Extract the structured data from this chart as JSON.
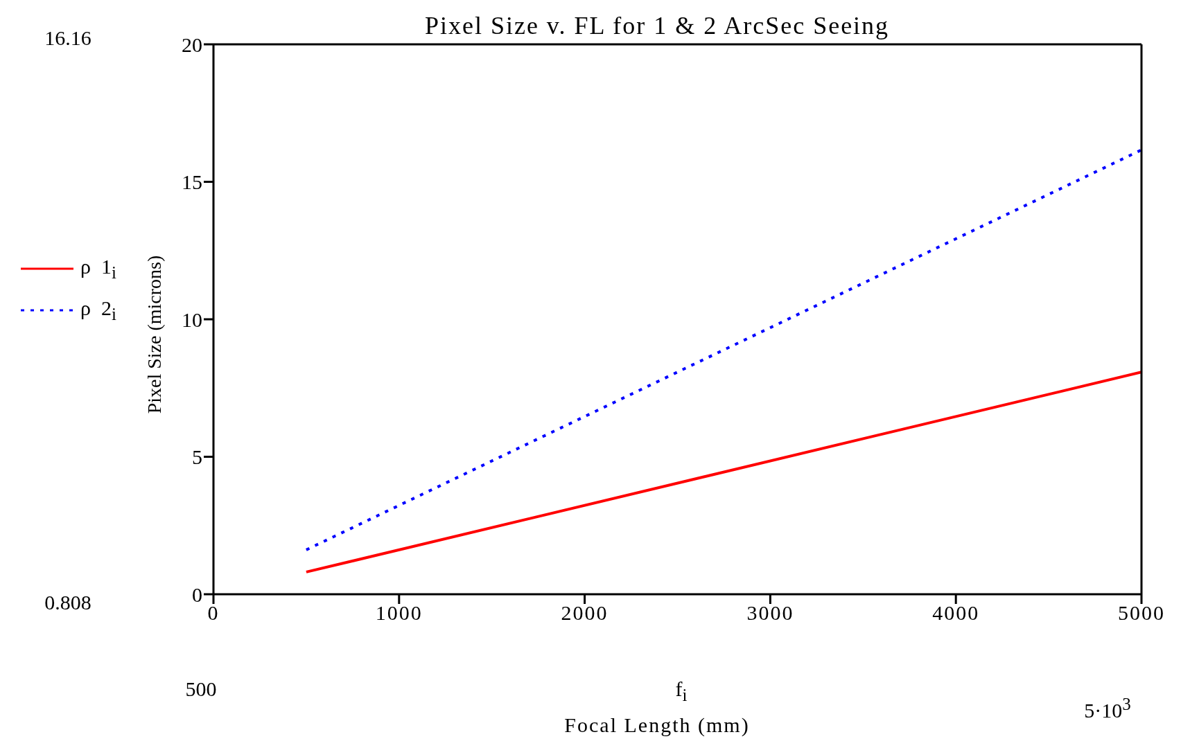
{
  "chart_data": {
    "type": "line",
    "title": "Pixel Size v. FL for 1 & 2 ArcSec Seeing",
    "xlabel": "Focal Length (mm)",
    "ylabel": "Pixel Size (microns)",
    "annotations": [
      "16.16",
      "0.808",
      "500",
      "5·10$^{3}$",
      "f$_{i}$"
    ],
    "x": [
      500,
      5000
    ],
    "series": [
      {
        "name": "ρ  1$_{i}$",
        "color": "#ff0000",
        "values": [
          0.808,
          8.08
        ],
        "line_style": "solid"
      },
      {
        "name": "ρ  2$_{i}$",
        "color": "#0000ff",
        "values": [
          1.616,
          16.16
        ],
        "line_style": "dotted"
      }
    ],
    "xlim": [
      0,
      5000
    ],
    "xticks": [
      0,
      1000,
      2000,
      3000,
      4000,
      5000
    ],
    "ylim": [
      0,
      20
    ],
    "yticks": [
      0,
      5,
      10,
      15,
      20
    ],
    "legend": "left",
    "marker": "none"
  }
}
